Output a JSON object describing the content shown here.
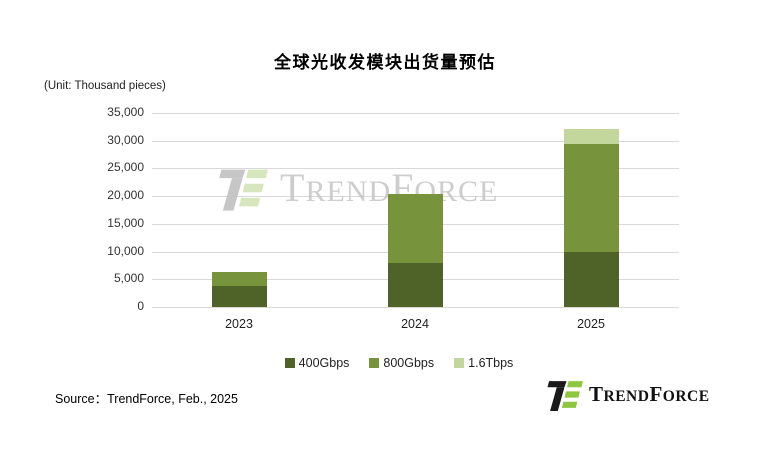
{
  "title": "全球光收发模块出货量预估",
  "unit_label": "(Unit: Thousand pieces)",
  "source": "Source：TrendForce, Feb., 2025",
  "watermark": {
    "brand": "TrendForce"
  },
  "footer_logo": {
    "brand": "TrendForce"
  },
  "colors": {
    "grid": "#d9d9d9",
    "watermark_text": "#c5c5c5",
    "logo_green": "#8dc63f",
    "logo_black": "#1a1a1a"
  },
  "chart_data": {
    "type": "bar",
    "stacked": true,
    "title": "全球光收发模块出货量预估",
    "unit": "Thousand pieces",
    "categories": [
      "2023",
      "2024",
      "2025"
    ],
    "series": [
      {
        "name": "400Gbps",
        "color": "#4F6228",
        "values": [
          3800,
          7900,
          10000
        ]
      },
      {
        "name": "800Gbps",
        "color": "#77933C",
        "values": [
          2500,
          12500,
          19500
        ]
      },
      {
        "name": "1.6Tbps",
        "color": "#C3D69B",
        "values": [
          0,
          0,
          2600
        ]
      }
    ],
    "totals": [
      6300,
      20400,
      32100
    ],
    "ylim": [
      0,
      35000
    ],
    "ytick_step": 5000,
    "ytick_labels": [
      "0",
      "5,000",
      "10,000",
      "15,000",
      "20,000",
      "25,000",
      "30,000",
      "35,000"
    ],
    "grid": true,
    "legend_position": "bottom"
  }
}
